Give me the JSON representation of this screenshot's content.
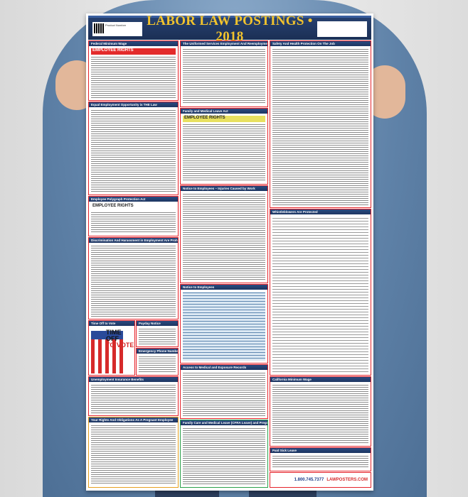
{
  "poster": {
    "title": "LABOR LAW POSTINGS • 2018",
    "header_left": "Product Number",
    "sections": {
      "federal_min_wage": {
        "title": "Federal Minimum Wage",
        "banner": "EMPLOYEE RIGHTS"
      },
      "userra": {
        "title": "The Uniformed Services Employment And Reemployment Rights Act"
      },
      "osha": {
        "title": "Safety And Health Protection On The Job"
      },
      "eeo": {
        "title": "Equal Employment Opportunity is THE Law"
      },
      "fmla": {
        "title": "Family and Medical Leave Act",
        "banner": "EMPLOYEE RIGHTS"
      },
      "polygraph": {
        "title": "Employee Polygraph Protection Act",
        "banner": "EMPLOYEE RIGHTS"
      },
      "injuries": {
        "title": "Notice to Employees – Injuries Caused by Work"
      },
      "whistleblowers": {
        "title": "Whistleblowers Are Protected"
      },
      "discrimination": {
        "title": "Discrimination And Harassment in Employment Are Prohibited By Law"
      },
      "notice": {
        "title": "Notice to Employees"
      },
      "vote": {
        "title": "Time Off to Vote",
        "line1": "TIME OFF",
        "line2": "TO VOTE"
      },
      "payday": {
        "title": "Payday Notice"
      },
      "emergency": {
        "title": "Emergency Phone Numbers"
      },
      "medical_records": {
        "title": "Access to Medical and Exposure Records"
      },
      "unemployment": {
        "title": "Unemployment Insurance Benefits"
      },
      "ca_min_wage": {
        "title": "California Minimum Wage"
      },
      "pregnant": {
        "title": "Your Rights And Obligations As A Pregnant Employee"
      },
      "cfra": {
        "title": "Family Care and Medical Leave (CFRA Leave) and Pregnancy Disability Leave"
      },
      "sick_leave": {
        "title": "Paid Sick Leave"
      }
    },
    "footer": {
      "phone": "1.800.745.7377",
      "site": "LAWPOSTERS.COM"
    }
  }
}
